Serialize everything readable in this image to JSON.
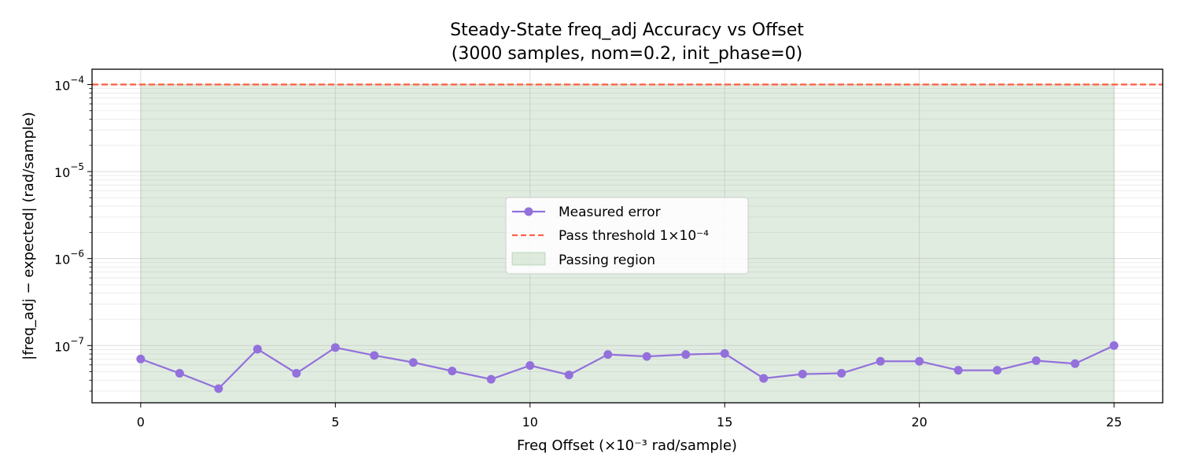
{
  "chart_data": {
    "type": "line",
    "title": "Steady-State freq_adj Accuracy vs Offset",
    "subtitle": "(3000 samples, nom=0.2, init_phase=0)",
    "xlabel": "Freq Offset (×10⁻³ rad/sample)",
    "ylabel": "|freq_adj − expected| (rad/sample)",
    "xlim": [
      -1.25,
      26.25
    ],
    "ylim": [
      2.2e-08,
      0.00015
    ],
    "yscale": "log",
    "grid": true,
    "legend_position": "center",
    "x_ticks": [
      0,
      5,
      10,
      15,
      20,
      25
    ],
    "x_tick_labels": [
      "0",
      "5",
      "10",
      "15",
      "20",
      "25"
    ],
    "y_ticks": [
      1e-07,
      1e-06,
      1e-05,
      0.0001
    ],
    "y_tick_labels": [
      {
        "base": "10",
        "exp": "−7"
      },
      {
        "base": "10",
        "exp": "−6"
      },
      {
        "base": "10",
        "exp": "−5"
      },
      {
        "base": "10",
        "exp": "−4"
      }
    ],
    "series": [
      {
        "name": "Measured error",
        "color": "#9370DB",
        "x": [
          0,
          1,
          2,
          3,
          4,
          5,
          6,
          7,
          8,
          9,
          10,
          11,
          12,
          13,
          14,
          15,
          16,
          17,
          18,
          19,
          20,
          21,
          22,
          23,
          24,
          25
        ],
        "values": [
          7e-08,
          4.8e-08,
          3.2e-08,
          9.1e-08,
          4.8e-08,
          9.5e-08,
          7.7e-08,
          6.4e-08,
          5.1e-08,
          4.1e-08,
          5.9e-08,
          4.6e-08,
          7.9e-08,
          7.5e-08,
          7.9e-08,
          8.1e-08,
          4.2e-08,
          4.7e-08,
          4.8e-08,
          6.6e-08,
          6.6e-08,
          5.2e-08,
          5.2e-08,
          6.7e-08,
          6.2e-08,
          1e-07
        ]
      }
    ],
    "threshold": {
      "name": "Pass threshold 1×10⁻⁴",
      "value": 0.0001,
      "color": "#FF6347"
    },
    "passing_region": {
      "name": "Passing region",
      "x_range": [
        0,
        25
      ],
      "color": "#8FBC8F"
    }
  }
}
